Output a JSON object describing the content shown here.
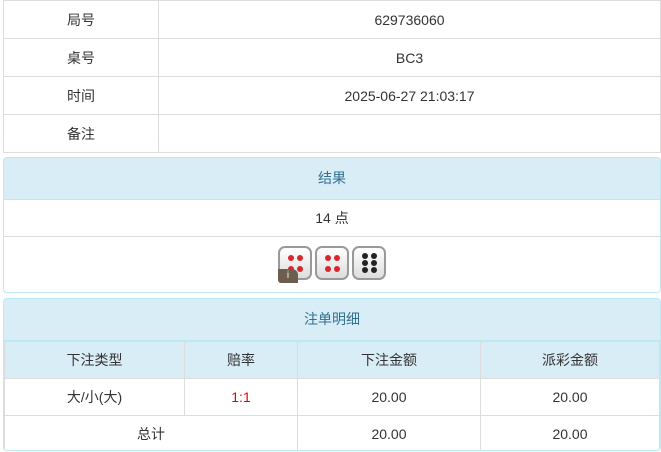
{
  "info": [
    {
      "label": "局号",
      "value": "629736060"
    },
    {
      "label": "桌号",
      "value": "BC3"
    },
    {
      "label": "时间",
      "value": "2025-06-27 21:03:17"
    },
    {
      "label": "备注",
      "value": ""
    }
  ],
  "result": {
    "title": "结果",
    "points": "14 点",
    "dice": [
      4,
      4,
      6
    ],
    "dice_colors": [
      "#d9262c",
      "#d9262c",
      "#222222"
    ],
    "badge": "i"
  },
  "bets": {
    "title": "注单明细",
    "headers": [
      "下注类型",
      "赔率",
      "下注金额",
      "派彩金额"
    ],
    "rows": [
      {
        "type": "大/小(大)",
        "odds": "1:1",
        "amount": "20.00",
        "payout": "20.00"
      }
    ],
    "total": {
      "label": "总计",
      "amount": "20.00",
      "payout": "20.00"
    }
  }
}
